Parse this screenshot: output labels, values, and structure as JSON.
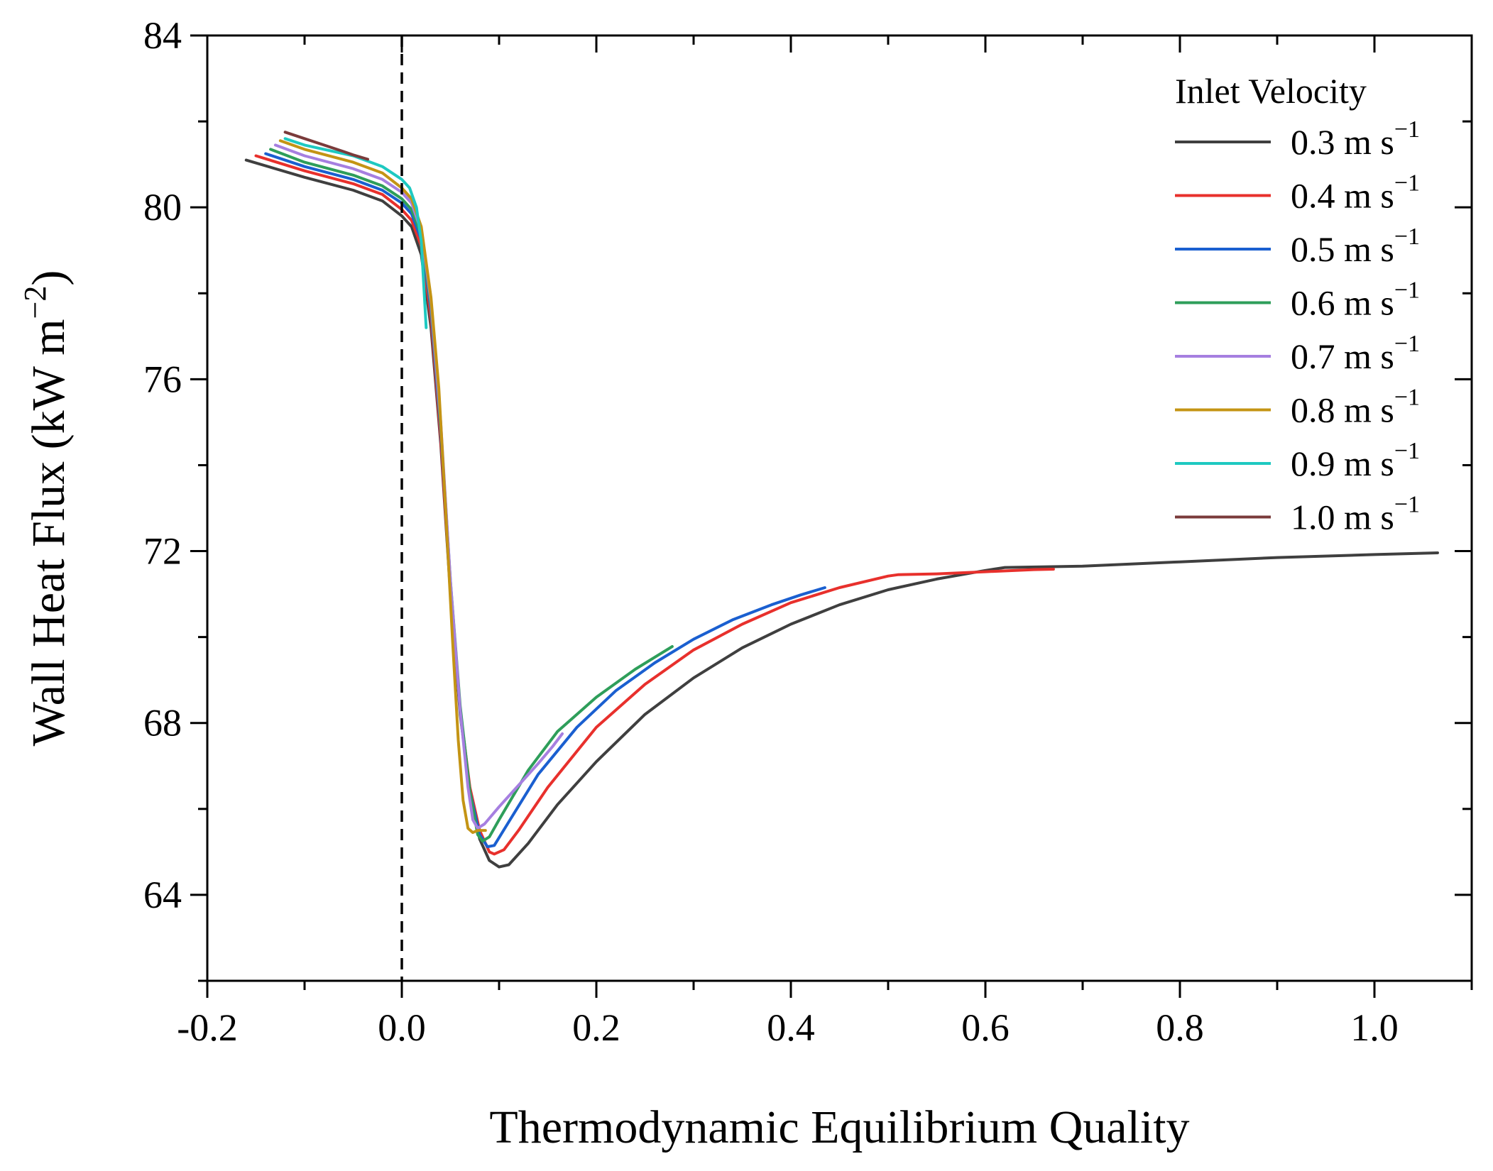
{
  "chart_data": {
    "type": "line",
    "xlabel": "Thermodynamic Equilibrium Quality",
    "ylabel_main": "Wall Heat Flux (kW m",
    "ylabel_sup": "−2",
    "ylabel_close": ")",
    "xlim": [
      -0.2,
      1.1
    ],
    "ylim": [
      62,
      84
    ],
    "x_ticks": [
      -0.2,
      0.0,
      0.2,
      0.4,
      0.6,
      0.8,
      1.0
    ],
    "x_tick_labels": [
      "-0.2",
      "0.0",
      "0.2",
      "0.4",
      "0.6",
      "0.8",
      "1.0"
    ],
    "x_minor": 0.1,
    "y_ticks": [
      64,
      68,
      72,
      76,
      80,
      84
    ],
    "y_tick_labels": [
      "64",
      "68",
      "72",
      "76",
      "80",
      "84"
    ],
    "y_minor": 2,
    "reference_line_x": 0.0,
    "legend_title": "Inlet Velocity",
    "unit_main": " m s",
    "unit_sup": "−1",
    "series": [
      {
        "name": "0.3",
        "color": "#3f3f3f",
        "points": [
          [
            -0.16,
            81.1
          ],
          [
            -0.1,
            80.7
          ],
          [
            -0.05,
            80.4
          ],
          [
            -0.02,
            80.15
          ],
          [
            0.0,
            79.8
          ],
          [
            0.01,
            79.55
          ],
          [
            0.02,
            78.9
          ],
          [
            0.03,
            77.2
          ],
          [
            0.04,
            74.5
          ],
          [
            0.05,
            71.0
          ],
          [
            0.06,
            68.2
          ],
          [
            0.07,
            66.4
          ],
          [
            0.08,
            65.3
          ],
          [
            0.09,
            64.8
          ],
          [
            0.1,
            64.65
          ],
          [
            0.11,
            64.7
          ],
          [
            0.13,
            65.2
          ],
          [
            0.16,
            66.1
          ],
          [
            0.2,
            67.1
          ],
          [
            0.25,
            68.2
          ],
          [
            0.3,
            69.05
          ],
          [
            0.35,
            69.75
          ],
          [
            0.4,
            70.3
          ],
          [
            0.45,
            70.75
          ],
          [
            0.5,
            71.1
          ],
          [
            0.55,
            71.35
          ],
          [
            0.6,
            71.55
          ],
          [
            0.62,
            71.62
          ],
          [
            0.7,
            71.65
          ],
          [
            0.8,
            71.75
          ],
          [
            0.9,
            71.85
          ],
          [
            1.0,
            71.92
          ],
          [
            1.065,
            71.96
          ]
        ]
      },
      {
        "name": "0.4",
        "color": "#e8302c",
        "points": [
          [
            -0.15,
            81.2
          ],
          [
            -0.1,
            80.85
          ],
          [
            -0.05,
            80.55
          ],
          [
            -0.02,
            80.3
          ],
          [
            0.0,
            79.95
          ],
          [
            0.01,
            79.7
          ],
          [
            0.02,
            79.1
          ],
          [
            0.03,
            77.4
          ],
          [
            0.04,
            74.6
          ],
          [
            0.05,
            71.1
          ],
          [
            0.06,
            68.3
          ],
          [
            0.07,
            66.5
          ],
          [
            0.08,
            65.5
          ],
          [
            0.09,
            65.0
          ],
          [
            0.095,
            64.95
          ],
          [
            0.105,
            65.05
          ],
          [
            0.12,
            65.5
          ],
          [
            0.15,
            66.5
          ],
          [
            0.2,
            67.9
          ],
          [
            0.25,
            68.9
          ],
          [
            0.3,
            69.7
          ],
          [
            0.35,
            70.3
          ],
          [
            0.4,
            70.8
          ],
          [
            0.45,
            71.15
          ],
          [
            0.5,
            71.42
          ],
          [
            0.51,
            71.45
          ],
          [
            0.55,
            71.47
          ],
          [
            0.6,
            71.52
          ],
          [
            0.65,
            71.57
          ],
          [
            0.67,
            71.58
          ]
        ]
      },
      {
        "name": "0.5",
        "color": "#1a5fd0",
        "points": [
          [
            -0.14,
            81.25
          ],
          [
            -0.1,
            80.95
          ],
          [
            -0.05,
            80.65
          ],
          [
            -0.02,
            80.4
          ],
          [
            0.0,
            80.1
          ],
          [
            0.01,
            79.85
          ],
          [
            0.02,
            79.25
          ],
          [
            0.03,
            77.6
          ],
          [
            0.04,
            74.8
          ],
          [
            0.05,
            71.2
          ],
          [
            0.06,
            68.3
          ],
          [
            0.07,
            66.4
          ],
          [
            0.08,
            65.4
          ],
          [
            0.088,
            65.12
          ],
          [
            0.095,
            65.15
          ],
          [
            0.11,
            65.7
          ],
          [
            0.14,
            66.8
          ],
          [
            0.18,
            67.9
          ],
          [
            0.22,
            68.75
          ],
          [
            0.26,
            69.4
          ],
          [
            0.3,
            69.95
          ],
          [
            0.34,
            70.4
          ],
          [
            0.38,
            70.75
          ],
          [
            0.41,
            70.98
          ],
          [
            0.435,
            71.15
          ]
        ]
      },
      {
        "name": "0.6",
        "color": "#2e9e5a",
        "points": [
          [
            -0.135,
            81.35
          ],
          [
            -0.1,
            81.05
          ],
          [
            -0.05,
            80.75
          ],
          [
            -0.02,
            80.5
          ],
          [
            0.0,
            80.2
          ],
          [
            0.01,
            79.95
          ],
          [
            0.02,
            79.35
          ],
          [
            0.03,
            77.7
          ],
          [
            0.04,
            74.9
          ],
          [
            0.05,
            71.3
          ],
          [
            0.06,
            68.4
          ],
          [
            0.07,
            66.4
          ],
          [
            0.078,
            65.4
          ],
          [
            0.083,
            65.25
          ],
          [
            0.09,
            65.35
          ],
          [
            0.1,
            65.75
          ],
          [
            0.13,
            66.9
          ],
          [
            0.16,
            67.8
          ],
          [
            0.2,
            68.6
          ],
          [
            0.24,
            69.25
          ],
          [
            0.265,
            69.6
          ],
          [
            0.278,
            69.78
          ]
        ]
      },
      {
        "name": "0.7",
        "color": "#a67fe0",
        "points": [
          [
            -0.13,
            81.45
          ],
          [
            -0.1,
            81.2
          ],
          [
            -0.05,
            80.9
          ],
          [
            -0.02,
            80.65
          ],
          [
            0.0,
            80.35
          ],
          [
            0.01,
            80.1
          ],
          [
            0.02,
            79.45
          ],
          [
            0.03,
            77.8
          ],
          [
            0.04,
            75.0
          ],
          [
            0.05,
            71.3
          ],
          [
            0.06,
            68.3
          ],
          [
            0.068,
            66.5
          ],
          [
            0.073,
            65.75
          ],
          [
            0.078,
            65.55
          ],
          [
            0.085,
            65.65
          ],
          [
            0.1,
            66.05
          ],
          [
            0.12,
            66.55
          ],
          [
            0.14,
            67.05
          ],
          [
            0.155,
            67.45
          ],
          [
            0.165,
            67.75
          ]
        ]
      },
      {
        "name": "0.8",
        "color": "#c49414",
        "points": [
          [
            -0.125,
            81.55
          ],
          [
            -0.1,
            81.35
          ],
          [
            -0.05,
            81.05
          ],
          [
            -0.02,
            80.8
          ],
          [
            0.0,
            80.45
          ],
          [
            0.01,
            80.2
          ],
          [
            0.02,
            79.55
          ],
          [
            0.03,
            77.9
          ],
          [
            0.038,
            75.8
          ],
          [
            0.045,
            73.0
          ],
          [
            0.052,
            70.0
          ],
          [
            0.058,
            67.6
          ],
          [
            0.063,
            66.2
          ],
          [
            0.068,
            65.55
          ],
          [
            0.073,
            65.45
          ],
          [
            0.078,
            65.5
          ],
          [
            0.086,
            65.5
          ]
        ]
      },
      {
        "name": "0.9",
        "color": "#1ec9c1",
        "points": [
          [
            -0.12,
            81.6
          ],
          [
            -0.1,
            81.45
          ],
          [
            -0.05,
            81.2
          ],
          [
            -0.02,
            80.95
          ],
          [
            0.0,
            80.65
          ],
          [
            0.008,
            80.45
          ],
          [
            0.015,
            80.0
          ],
          [
            0.02,
            79.2
          ],
          [
            0.025,
            77.2
          ]
        ]
      },
      {
        "name": "1.0",
        "color": "#7a3b3b",
        "points": [
          [
            -0.12,
            81.75
          ],
          [
            -0.1,
            81.6
          ],
          [
            -0.08,
            81.45
          ],
          [
            -0.06,
            81.3
          ],
          [
            -0.05,
            81.22
          ],
          [
            -0.035,
            81.12
          ]
        ]
      }
    ]
  }
}
